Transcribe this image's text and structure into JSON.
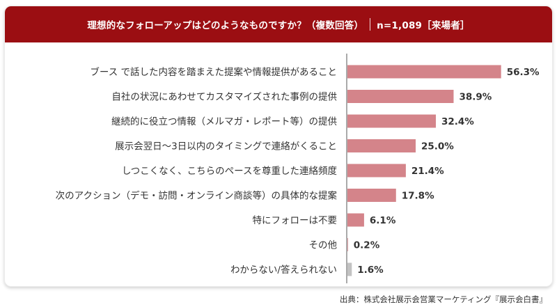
{
  "header": {
    "title": "理想的なフォローアップはどのようなものですか？（複数回答）",
    "sample": "n=1,089［来場者］"
  },
  "source": "出典：株式会社展示会営業マーケティング『展示会白書』",
  "colors": {
    "header_bg": "#9b0e12",
    "bar": "#d4848a",
    "bar_other": "#c2c2c2",
    "axis": "#555555",
    "text": "#333333"
  },
  "chart_data": {
    "type": "bar",
    "orientation": "horizontal",
    "title": "理想的なフォローアップはどのようなものですか？（複数回答）",
    "categories": [
      "ブース で話した内容を踏まえた提案や情報提供があること",
      "自社の状況にあわせてカスタマイズされた事例の提供",
      "継続的に役立つ情報（メルマガ・レポート等）の提供",
      "展示会翌日〜3日以内のタイミングで連絡がくること",
      "しつこくなく、こちらのペースを尊重した連絡頻度",
      "次のアクション（デモ・訪問・オンライン商談等）の具体的な提案",
      "特にフォローは不要",
      "その他",
      "わからない/答えられない"
    ],
    "values": [
      56.3,
      38.9,
      32.4,
      25.0,
      21.4,
      17.8,
      6.1,
      0.2,
      1.6
    ],
    "value_labels": [
      "56.3%",
      "38.9%",
      "32.4%",
      "25.0%",
      "21.4%",
      "17.8%",
      "6.1%",
      "0.2%",
      "1.6%"
    ],
    "unit": "%",
    "xlim": [
      0,
      100
    ]
  }
}
